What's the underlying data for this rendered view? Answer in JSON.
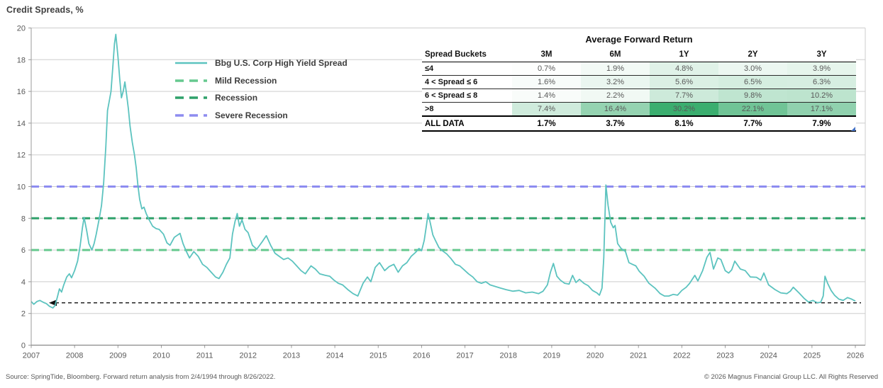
{
  "page": {
    "footer_source": "Source: SpringTide, Bloomberg. Forward return analysis from 2/4/1994 through 8/26/2022.",
    "footer_copyright": "© 2026 Magnus Financial Group LLC. All Rights Reserved"
  },
  "chart_data": {
    "type": "line",
    "title": "Credit Spreads, %",
    "xlim": [
      2007,
      2026
    ],
    "ylim": [
      0,
      20
    ],
    "x_ticks": [
      2007,
      2008,
      2009,
      2010,
      2011,
      2012,
      2013,
      2014,
      2015,
      2016,
      2017,
      2018,
      2019,
      2020,
      2021,
      2022,
      2023,
      2024,
      2025,
      2026
    ],
    "y_ticks": [
      0,
      2,
      4,
      6,
      8,
      10,
      12,
      14,
      16,
      18,
      20
    ],
    "grid": "horizontal",
    "legend_position": "upper-left-inside",
    "colors": {
      "grid": "#cdcdcd",
      "axis": "#9b9b9b",
      "tick_text": "#595959"
    },
    "reference_line": {
      "name": "current-spread-level",
      "value": 2.67,
      "color": "#111111",
      "style": "dashed",
      "arrow": "left"
    },
    "series": [
      {
        "name": "Bbg U.S. Corp High Yield Spread",
        "kind": "line",
        "color": "#5CC3BF",
        "style": "solid",
        "points": [
          [
            2007.0,
            2.75
          ],
          [
            2007.06,
            2.58
          ],
          [
            2007.13,
            2.75
          ],
          [
            2007.2,
            2.82
          ],
          [
            2007.28,
            2.7
          ],
          [
            2007.35,
            2.62
          ],
          [
            2007.42,
            2.45
          ],
          [
            2007.5,
            2.35
          ],
          [
            2007.55,
            2.5
          ],
          [
            2007.6,
            3.0
          ],
          [
            2007.65,
            3.55
          ],
          [
            2007.7,
            3.35
          ],
          [
            2007.75,
            3.8
          ],
          [
            2007.82,
            4.3
          ],
          [
            2007.88,
            4.5
          ],
          [
            2007.93,
            4.25
          ],
          [
            2008.0,
            4.7
          ],
          [
            2008.07,
            5.3
          ],
          [
            2008.13,
            6.3
          ],
          [
            2008.18,
            7.4
          ],
          [
            2008.22,
            8.05
          ],
          [
            2008.28,
            7.2
          ],
          [
            2008.33,
            6.4
          ],
          [
            2008.4,
            6.0
          ],
          [
            2008.45,
            6.4
          ],
          [
            2008.5,
            7.0
          ],
          [
            2008.57,
            8.0
          ],
          [
            2008.62,
            8.8
          ],
          [
            2008.67,
            10.2
          ],
          [
            2008.72,
            12.5
          ],
          [
            2008.76,
            14.8
          ],
          [
            2008.8,
            15.4
          ],
          [
            2008.84,
            16.0
          ],
          [
            2008.88,
            17.5
          ],
          [
            2008.92,
            19.0
          ],
          [
            2008.95,
            19.6
          ],
          [
            2009.0,
            18.2
          ],
          [
            2009.04,
            16.8
          ],
          [
            2009.08,
            15.6
          ],
          [
            2009.12,
            16.0
          ],
          [
            2009.16,
            16.6
          ],
          [
            2009.2,
            15.8
          ],
          [
            2009.24,
            14.9
          ],
          [
            2009.28,
            13.8
          ],
          [
            2009.33,
            12.8
          ],
          [
            2009.38,
            12.0
          ],
          [
            2009.42,
            11.2
          ],
          [
            2009.46,
            10.1
          ],
          [
            2009.5,
            9.2
          ],
          [
            2009.55,
            8.6
          ],
          [
            2009.6,
            8.7
          ],
          [
            2009.65,
            8.3
          ],
          [
            2009.72,
            7.9
          ],
          [
            2009.8,
            7.5
          ],
          [
            2009.88,
            7.35
          ],
          [
            2009.95,
            7.3
          ],
          [
            2010.05,
            7.0
          ],
          [
            2010.13,
            6.45
          ],
          [
            2010.2,
            6.3
          ],
          [
            2010.3,
            6.8
          ],
          [
            2010.43,
            7.05
          ],
          [
            2010.5,
            6.4
          ],
          [
            2010.57,
            5.95
          ],
          [
            2010.65,
            5.5
          ],
          [
            2010.75,
            5.9
          ],
          [
            2010.85,
            5.6
          ],
          [
            2010.95,
            5.1
          ],
          [
            2011.05,
            4.9
          ],
          [
            2011.15,
            4.6
          ],
          [
            2011.25,
            4.3
          ],
          [
            2011.33,
            4.2
          ],
          [
            2011.42,
            4.6
          ],
          [
            2011.5,
            5.1
          ],
          [
            2011.58,
            5.5
          ],
          [
            2011.64,
            7.0
          ],
          [
            2011.7,
            7.8
          ],
          [
            2011.75,
            8.3
          ],
          [
            2011.8,
            7.5
          ],
          [
            2011.86,
            7.9
          ],
          [
            2011.93,
            7.3
          ],
          [
            2012.0,
            7.1
          ],
          [
            2012.1,
            6.3
          ],
          [
            2012.2,
            6.05
          ],
          [
            2012.32,
            6.5
          ],
          [
            2012.42,
            6.9
          ],
          [
            2012.52,
            6.3
          ],
          [
            2012.62,
            5.8
          ],
          [
            2012.72,
            5.6
          ],
          [
            2012.82,
            5.4
          ],
          [
            2012.92,
            5.5
          ],
          [
            2013.02,
            5.3
          ],
          [
            2013.12,
            5.0
          ],
          [
            2013.22,
            4.7
          ],
          [
            2013.32,
            4.5
          ],
          [
            2013.45,
            5.0
          ],
          [
            2013.55,
            4.8
          ],
          [
            2013.65,
            4.5
          ],
          [
            2013.78,
            4.4
          ],
          [
            2013.88,
            4.35
          ],
          [
            2013.98,
            4.1
          ],
          [
            2014.08,
            3.9
          ],
          [
            2014.18,
            3.8
          ],
          [
            2014.3,
            3.5
          ],
          [
            2014.42,
            3.25
          ],
          [
            2014.53,
            3.1
          ],
          [
            2014.65,
            3.9
          ],
          [
            2014.75,
            4.3
          ],
          [
            2014.83,
            4.0
          ],
          [
            2014.93,
            4.9
          ],
          [
            2015.03,
            5.2
          ],
          [
            2015.15,
            4.7
          ],
          [
            2015.25,
            4.95
          ],
          [
            2015.36,
            5.1
          ],
          [
            2015.46,
            4.6
          ],
          [
            2015.56,
            5.0
          ],
          [
            2015.66,
            5.2
          ],
          [
            2015.76,
            5.6
          ],
          [
            2015.86,
            5.85
          ],
          [
            2015.94,
            6.1
          ],
          [
            2016.0,
            5.95
          ],
          [
            2016.06,
            6.6
          ],
          [
            2016.11,
            7.5
          ],
          [
            2016.15,
            8.3
          ],
          [
            2016.2,
            7.7
          ],
          [
            2016.26,
            6.95
          ],
          [
            2016.32,
            6.6
          ],
          [
            2016.4,
            6.15
          ],
          [
            2016.48,
            5.95
          ],
          [
            2016.58,
            5.75
          ],
          [
            2016.68,
            5.45
          ],
          [
            2016.78,
            5.1
          ],
          [
            2016.88,
            5.0
          ],
          [
            2016.98,
            4.75
          ],
          [
            2017.08,
            4.5
          ],
          [
            2017.18,
            4.3
          ],
          [
            2017.28,
            4.0
          ],
          [
            2017.38,
            3.9
          ],
          [
            2017.48,
            4.0
          ],
          [
            2017.58,
            3.8
          ],
          [
            2017.7,
            3.7
          ],
          [
            2017.82,
            3.6
          ],
          [
            2017.95,
            3.5
          ],
          [
            2018.1,
            3.4
          ],
          [
            2018.25,
            3.45
          ],
          [
            2018.4,
            3.3
          ],
          [
            2018.55,
            3.35
          ],
          [
            2018.7,
            3.25
          ],
          [
            2018.8,
            3.4
          ],
          [
            2018.9,
            3.8
          ],
          [
            2018.97,
            4.6
          ],
          [
            2019.04,
            5.15
          ],
          [
            2019.12,
            4.35
          ],
          [
            2019.2,
            4.1
          ],
          [
            2019.3,
            3.9
          ],
          [
            2019.4,
            3.85
          ],
          [
            2019.48,
            4.4
          ],
          [
            2019.56,
            3.95
          ],
          [
            2019.64,
            4.15
          ],
          [
            2019.74,
            3.9
          ],
          [
            2019.84,
            3.75
          ],
          [
            2019.94,
            3.45
          ],
          [
            2020.04,
            3.3
          ],
          [
            2020.1,
            3.15
          ],
          [
            2020.16,
            3.6
          ],
          [
            2020.2,
            5.5
          ],
          [
            2020.25,
            10.1
          ],
          [
            2020.3,
            8.8
          ],
          [
            2020.36,
            7.75
          ],
          [
            2020.42,
            7.4
          ],
          [
            2020.46,
            7.55
          ],
          [
            2020.52,
            6.4
          ],
          [
            2020.6,
            6.1
          ],
          [
            2020.7,
            5.9
          ],
          [
            2020.78,
            5.2
          ],
          [
            2020.86,
            5.1
          ],
          [
            2020.94,
            5.0
          ],
          [
            2021.02,
            4.65
          ],
          [
            2021.13,
            4.35
          ],
          [
            2021.24,
            3.9
          ],
          [
            2021.38,
            3.6
          ],
          [
            2021.5,
            3.25
          ],
          [
            2021.6,
            3.1
          ],
          [
            2021.7,
            3.1
          ],
          [
            2021.8,
            3.2
          ],
          [
            2021.9,
            3.15
          ],
          [
            2022.0,
            3.45
          ],
          [
            2022.1,
            3.65
          ],
          [
            2022.18,
            3.9
          ],
          [
            2022.3,
            4.4
          ],
          [
            2022.37,
            4.05
          ],
          [
            2022.48,
            4.7
          ],
          [
            2022.58,
            5.55
          ],
          [
            2022.65,
            5.85
          ],
          [
            2022.73,
            4.8
          ],
          [
            2022.83,
            5.5
          ],
          [
            2022.9,
            5.4
          ],
          [
            2023.0,
            4.7
          ],
          [
            2023.08,
            4.55
          ],
          [
            2023.15,
            4.75
          ],
          [
            2023.22,
            5.3
          ],
          [
            2023.35,
            4.8
          ],
          [
            2023.46,
            4.7
          ],
          [
            2023.58,
            4.3
          ],
          [
            2023.72,
            4.28
          ],
          [
            2023.82,
            4.1
          ],
          [
            2023.89,
            4.55
          ],
          [
            2024.0,
            3.8
          ],
          [
            2024.15,
            3.5
          ],
          [
            2024.28,
            3.3
          ],
          [
            2024.42,
            3.25
          ],
          [
            2024.5,
            3.4
          ],
          [
            2024.57,
            3.65
          ],
          [
            2024.7,
            3.3
          ],
          [
            2024.82,
            2.95
          ],
          [
            2024.92,
            2.72
          ],
          [
            2025.02,
            2.82
          ],
          [
            2025.12,
            2.68
          ],
          [
            2025.2,
            2.7
          ],
          [
            2025.26,
            3.1
          ],
          [
            2025.3,
            4.35
          ],
          [
            2025.36,
            3.9
          ],
          [
            2025.44,
            3.45
          ],
          [
            2025.52,
            3.15
          ],
          [
            2025.62,
            2.9
          ],
          [
            2025.72,
            2.82
          ],
          [
            2025.82,
            3.0
          ],
          [
            2025.9,
            2.92
          ],
          [
            2026.0,
            2.78
          ]
        ]
      },
      {
        "name": "Mild Recession",
        "kind": "threshold",
        "color": "#66C98F",
        "style": "dashed",
        "value": 6
      },
      {
        "name": "Recession",
        "kind": "threshold",
        "color": "#2FA16A",
        "style": "dashed",
        "value": 8
      },
      {
        "name": "Severe Recession",
        "kind": "threshold",
        "color": "#8D8CF0",
        "style": "dashed",
        "value": 10
      }
    ]
  },
  "table": {
    "title": "Average Forward Return",
    "col_headers": [
      "Spread Buckets",
      "3M",
      "6M",
      "1Y",
      "2Y",
      "3Y"
    ],
    "rows": [
      {
        "label": "≤4",
        "values": [
          "0.7%",
          "1.9%",
          "4.8%",
          "3.0%",
          "3.9%"
        ],
        "colors": [
          "#FDFEFD",
          "#F3FAF6",
          "#E0F2E8",
          "#ECF7F1",
          "#E6F5EC"
        ]
      },
      {
        "label": "4 < Spread ≤ 6",
        "values": [
          "1.6%",
          "3.2%",
          "5.6%",
          "6.5%",
          "6.3%"
        ],
        "colors": [
          "#F8FCFA",
          "#EAF6F0",
          "#DBF0E4",
          "#D5EEE0",
          "#D6EEE1"
        ]
      },
      {
        "label": "6 < Spread ≤ 8",
        "values": [
          "1.4%",
          "2.2%",
          "7.7%",
          "9.8%",
          "10.2%"
        ],
        "colors": [
          "#F9FCFA",
          "#F1F9F4",
          "#CDEADA",
          "#BFE5D0",
          "#BDE4CE"
        ]
      },
      {
        "label": ">8",
        "values": [
          "7.4%",
          "16.4%",
          "30.2%",
          "22.1%",
          "17.1%"
        ],
        "colors": [
          "#CFEBDC",
          "#95D3B1",
          "#3BAE6F",
          "#70C496",
          "#90D1AE"
        ]
      },
      {
        "label": "ALL DATA",
        "values": [
          "1.7%",
          "3.7%",
          "8.1%",
          "7.7%",
          "7.9%"
        ],
        "colors": [
          "#FFFFFF",
          "#FFFFFF",
          "#FFFFFF",
          "#FFFFFF",
          "#FFFFFF"
        ],
        "bold": true
      }
    ]
  }
}
